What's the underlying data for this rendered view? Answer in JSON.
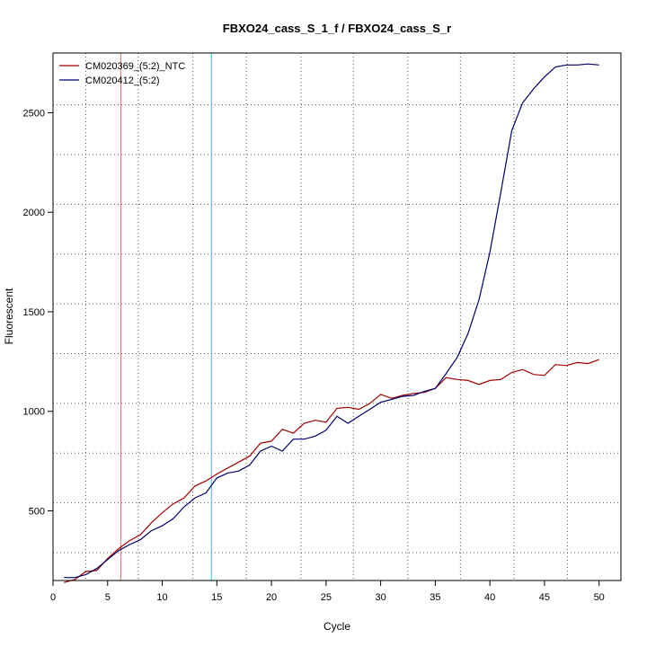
{
  "chart_data": {
    "type": "line",
    "title": "FBXO24_cass_S_1_f / FBXO24_cass_S_r",
    "xlabel": "Cycle",
    "ylabel": "Fluorescent",
    "xlim": [
      0,
      52
    ],
    "ylim": [
      150,
      2800
    ],
    "xticks": [
      0,
      5,
      10,
      15,
      20,
      25,
      30,
      35,
      40,
      45,
      50
    ],
    "yticks": [
      500,
      1000,
      1500,
      2000,
      2500
    ],
    "grid_x": [
      3,
      7.8,
      12.8,
      17.7,
      22.7,
      27.5,
      32.5,
      37.3,
      42.2,
      47.1
    ],
    "grid_y": [
      290,
      540,
      790,
      1040,
      1290,
      1540,
      1790,
      2040,
      2290,
      2540
    ],
    "legend_position": "top-left",
    "vlines": [
      {
        "x": 6.2,
        "color": "#e07070"
      },
      {
        "x": 14.5,
        "color": "#00d8e8"
      }
    ],
    "series": [
      {
        "name": "CM020369_(5:2)_NTC",
        "color": "#a00000",
        "x": [
          1,
          2,
          3,
          4,
          5,
          6,
          7,
          8,
          9,
          10,
          11,
          12,
          13,
          14,
          15,
          16,
          17,
          18,
          19,
          20,
          21,
          22,
          23,
          24,
          25,
          26,
          27,
          28,
          29,
          30,
          31,
          32,
          33,
          34,
          35,
          36,
          37,
          38,
          39,
          40,
          41,
          42,
          43,
          44,
          45,
          46,
          47,
          48,
          49,
          50
        ],
        "values": [
          140,
          155,
          195,
          200,
          260,
          310,
          350,
          380,
          440,
          490,
          535,
          565,
          625,
          650,
          685,
          715,
          745,
          775,
          840,
          850,
          910,
          890,
          940,
          955,
          945,
          1015,
          1020,
          1010,
          1040,
          1085,
          1065,
          1080,
          1090,
          1095,
          1115,
          1170,
          1160,
          1155,
          1135,
          1155,
          1160,
          1195,
          1210,
          1185,
          1180,
          1235,
          1230,
          1245,
          1240,
          1260
        ]
      },
      {
        "name": "CM020412_(5:2)",
        "color": "#00006e",
        "x": [
          1,
          2,
          3,
          4,
          5,
          6,
          7,
          8,
          9,
          10,
          11,
          12,
          13,
          14,
          15,
          16,
          17,
          18,
          19,
          20,
          21,
          22,
          23,
          24,
          25,
          26,
          27,
          28,
          29,
          30,
          31,
          32,
          33,
          34,
          35,
          36,
          37,
          38,
          39,
          40,
          41,
          42,
          43,
          44,
          45,
          46,
          47,
          48,
          49,
          50
        ],
        "values": [
          165,
          165,
          180,
          210,
          255,
          300,
          330,
          355,
          400,
          425,
          460,
          520,
          565,
          590,
          665,
          690,
          700,
          730,
          800,
          825,
          800,
          860,
          860,
          875,
          905,
          975,
          940,
          975,
          1010,
          1045,
          1060,
          1075,
          1080,
          1100,
          1115,
          1190,
          1270,
          1390,
          1560,
          1800,
          2100,
          2410,
          2550,
          2620,
          2680,
          2730,
          2740,
          2740,
          2745,
          2740
        ]
      }
    ]
  }
}
